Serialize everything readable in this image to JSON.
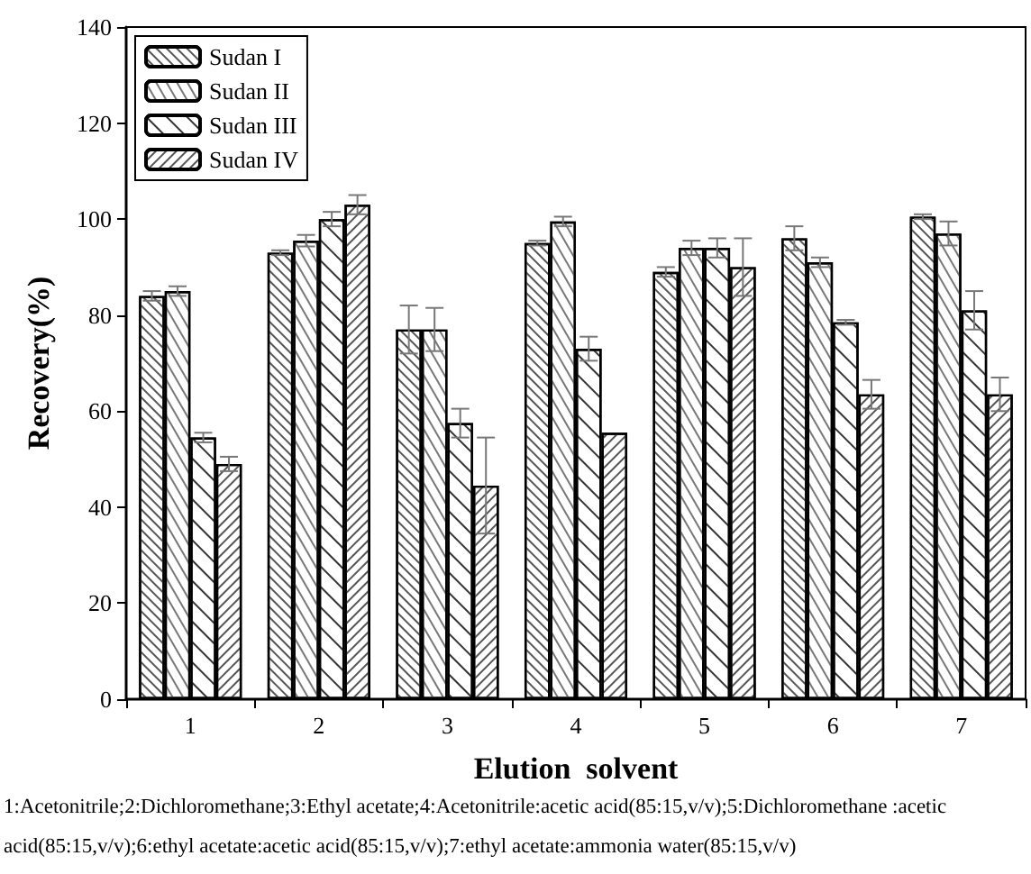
{
  "chart_data": {
    "type": "bar",
    "xlabel": "Elution  solvent",
    "ylabel": "Recovery(%)",
    "categories": [
      "1",
      "2",
      "3",
      "4",
      "5",
      "6",
      "7"
    ],
    "series": [
      {
        "name": "Sudan I",
        "color": "#ffffff",
        "values": [
          84,
          93,
          77,
          95,
          89,
          96,
          100.5
        ],
        "errors": [
          1,
          0.5,
          5,
          0.5,
          1,
          2.5,
          0.5
        ]
      },
      {
        "name": "Sudan II",
        "color": "#ffffff",
        "values": [
          85,
          95.5,
          77,
          99.5,
          94,
          91,
          97
        ],
        "errors": [
          1,
          1.2,
          4.5,
          1,
          1.5,
          1,
          2.5
        ]
      },
      {
        "name": "Sudan III",
        "color": "#ffffff",
        "values": [
          54.5,
          100,
          57.5,
          73,
          94,
          78.5,
          81
        ],
        "errors": [
          1,
          1.5,
          3,
          2.5,
          2,
          0.5,
          4
        ]
      },
      {
        "name": "Sudan IV",
        "color": "#ffffff",
        "values": [
          49,
          103,
          44.5,
          55.5,
          90,
          63.5,
          63.5
        ],
        "errors": [
          1.5,
          2,
          10,
          null,
          6,
          3,
          3.5
        ]
      }
    ],
    "ylim": [
      0,
      140
    ],
    "yticks": [
      0,
      20,
      40,
      60,
      80,
      100,
      120,
      140
    ],
    "grid": false,
    "legend": "top left",
    "annotations": [
      "1:Acetonitrile;2:Dichloromethane;3:Ethyl acetate;4:Acetonitrile:acetic acid(85:15,v/v);5:Dichloromethane :acetic acid(85:15,v/v);6:ethyl acetate:acetic acid(85:15,v/v);7:ethyl acetate:ammonia water(85:15,v/v)"
    ]
  }
}
